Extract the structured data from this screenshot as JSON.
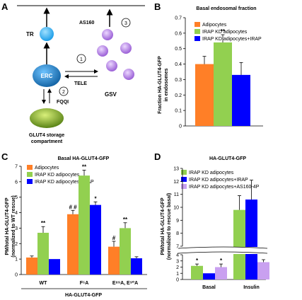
{
  "panels": {
    "A": "A",
    "B": "B",
    "C": "C",
    "D": "D"
  },
  "colors": {
    "adipocytes": "#ff7f27",
    "irap_kd": "#92d050",
    "irap_kd_irap": "#0000ff",
    "irap_kd_as160": "#c9a0f0",
    "er_node": "#1b7fc4",
    "tr_node": "#1e9ee8",
    "gsv_node": "#b07fe0",
    "storage": "#7fa81e"
  },
  "diagram": {
    "tr_label": "TR",
    "er_label": "ERC",
    "as160_label": "AS160",
    "tele_label": "TELE",
    "fqqi_label": "FQQI",
    "gsv_label": "GSV",
    "storage_label_1": "GLUT4 storage",
    "storage_label_2": "compartment",
    "step1": "1",
    "step2": "2",
    "step3": "3"
  },
  "chart_data": [
    {
      "panel": "B",
      "type": "bar",
      "title": "Basal endosomal fraction",
      "ylabel_1": "Fraction HA-GLUT4-GFP",
      "ylabel_2": "in endosomes",
      "ylim": [
        0,
        0.7
      ],
      "yticks": [
        "0",
        "0.1",
        "0.2",
        "0.3",
        "0.4",
        "0.5",
        "0.6",
        "0.7"
      ],
      "legend": [
        "Adipocytes",
        "IRAP KD adipocytes",
        "IRAP KD adipocytes+IRAP"
      ],
      "values": [
        0.4,
        0.54,
        0.33
      ],
      "errors": [
        0.05,
        0.05,
        0.08
      ],
      "sig": [
        "",
        "**",
        ""
      ]
    },
    {
      "panel": "C",
      "type": "bar",
      "title": "Basal HA-GLUT4-GFP",
      "ylabel_1": "PM/total HA-GLUT4-GFP",
      "ylabel_2": "(normalized to WT rescue)",
      "xlabel": "HA-GLUT4-GFP",
      "ylim": [
        0,
        7
      ],
      "yticks": [
        "0",
        "1",
        "2",
        "3",
        "4",
        "5",
        "6",
        "7"
      ],
      "legend": [
        "Adipocytes",
        "IRAP KD adipocytes",
        "IRAP KD adipocytes+IRAP"
      ],
      "categories": [
        "WT",
        "F⁵A",
        "E⁸⁹A, E⁹⁰A"
      ],
      "series": [
        {
          "values": [
            1.1,
            3.9,
            1.8
          ],
          "errors": [
            0.1,
            0.25,
            0.35
          ],
          "sig": [
            "",
            "# #",
            "#"
          ]
        },
        {
          "values": [
            2.7,
            6.4,
            3.0
          ],
          "errors": [
            0.4,
            0.35,
            0.35
          ],
          "sig": [
            "**",
            "**",
            "**"
          ]
        },
        {
          "values": [
            1.0,
            4.5,
            1.05
          ],
          "errors": [
            0.0,
            0.2,
            0.1
          ],
          "sig": [
            "",
            "*",
            ""
          ]
        }
      ]
    },
    {
      "panel": "D",
      "type": "bar",
      "title": "HA-GLUT4-GFP",
      "ylabel_1": "PM/total HA-GLUT4-GFP",
      "ylabel_2": "(normalized to rescue basal)",
      "legend": [
        "IRAP KD adipocytes",
        "IRAP KD adipocytes+IRAP",
        "IRAP KD adipocytes+AS160-4P"
      ],
      "categories": [
        "Basal",
        "Insulin"
      ],
      "yticks_lower": [
        "0",
        "1",
        "2",
        "3",
        "4"
      ],
      "yticks_upper": [
        "7",
        "8",
        "9",
        "10",
        "11",
        "12",
        "13"
      ],
      "axis_break": [
        4,
        7
      ],
      "series": [
        {
          "values": [
            2.2,
            9.8
          ],
          "errors": [
            0.3,
            1.1
          ],
          "sig": [
            "*",
            ""
          ]
        },
        {
          "values": [
            1.0,
            10.6
          ],
          "errors": [
            0.0,
            1.5
          ],
          "sig": [
            "",
            ""
          ]
        },
        {
          "values": [
            2.0,
            2.8
          ],
          "errors": [
            0.5,
            0.4
          ],
          "sig": [
            "*",
            ""
          ]
        }
      ]
    }
  ]
}
